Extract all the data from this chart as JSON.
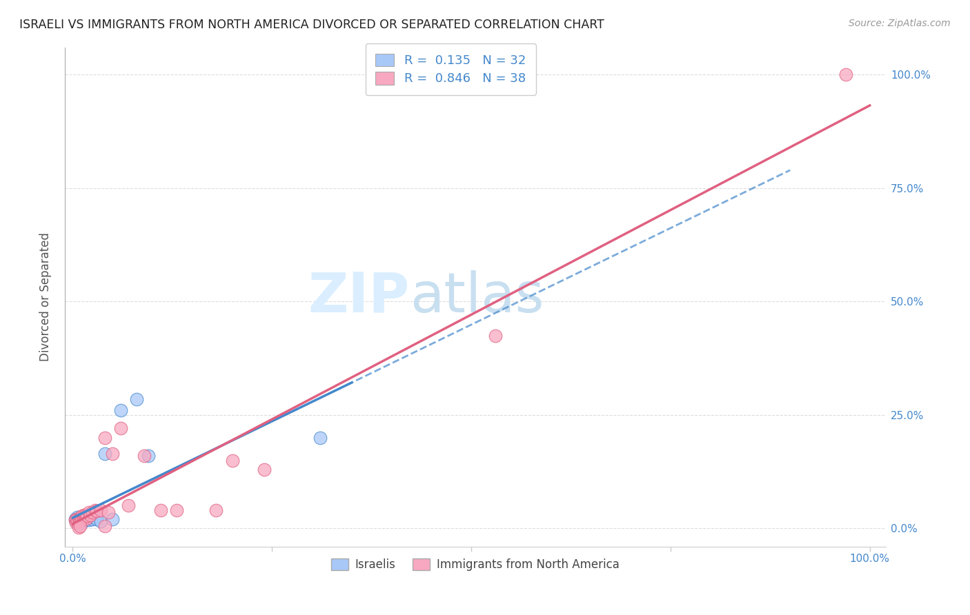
{
  "title": "ISRAELI VS IMMIGRANTS FROM NORTH AMERICA DIVORCED OR SEPARATED CORRELATION CHART",
  "source": "Source: ZipAtlas.com",
  "ylabel": "Divorced or Separated",
  "legend_label1": "Israelis",
  "legend_label2": "Immigrants from North America",
  "R1": 0.135,
  "N1": 32,
  "R2": 0.846,
  "N2": 38,
  "color_blue": "#a8c8f8",
  "color_pink": "#f8a8c0",
  "line_blue": "#4488cc",
  "line_pink": "#e06080",
  "watermark_zip": "ZIP",
  "watermark_atlas": "atlas",
  "watermark_color": "#daeeff",
  "background": "#ffffff",
  "grid_color": "#dddddd",
  "blue_scatter_x": [
    0.003,
    0.004,
    0.005,
    0.006,
    0.006,
    0.007,
    0.007,
    0.008,
    0.008,
    0.009,
    0.01,
    0.01,
    0.011,
    0.012,
    0.013,
    0.013,
    0.014,
    0.015,
    0.016,
    0.018,
    0.02,
    0.022,
    0.025,
    0.028,
    0.03,
    0.035,
    0.04,
    0.05,
    0.06,
    0.08,
    0.095,
    0.31
  ],
  "blue_scatter_y": [
    0.02,
    0.015,
    0.018,
    0.012,
    0.025,
    0.01,
    0.022,
    0.015,
    0.018,
    0.02,
    0.015,
    0.025,
    0.018,
    0.022,
    0.02,
    0.015,
    0.025,
    0.02,
    0.018,
    0.022,
    0.018,
    0.025,
    0.02,
    0.025,
    0.02,
    0.015,
    0.165,
    0.02,
    0.26,
    0.285,
    0.16,
    0.2
  ],
  "pink_scatter_x": [
    0.003,
    0.004,
    0.005,
    0.006,
    0.007,
    0.008,
    0.009,
    0.01,
    0.011,
    0.012,
    0.013,
    0.014,
    0.015,
    0.016,
    0.017,
    0.018,
    0.02,
    0.022,
    0.025,
    0.028,
    0.03,
    0.035,
    0.04,
    0.045,
    0.05,
    0.06,
    0.07,
    0.09,
    0.11,
    0.13,
    0.18,
    0.2,
    0.24,
    0.53,
    0.007,
    0.009,
    0.04,
    0.97
  ],
  "pink_scatter_y": [
    0.018,
    0.012,
    0.02,
    0.015,
    0.022,
    0.018,
    0.015,
    0.025,
    0.02,
    0.028,
    0.022,
    0.03,
    0.025,
    0.03,
    0.022,
    0.028,
    0.035,
    0.03,
    0.035,
    0.04,
    0.038,
    0.04,
    0.2,
    0.035,
    0.165,
    0.22,
    0.05,
    0.16,
    0.04,
    0.04,
    0.04,
    0.15,
    0.13,
    0.425,
    0.002,
    0.005,
    0.005,
    1.0
  ],
  "ytick_values": [
    0.0,
    0.25,
    0.5,
    0.75,
    1.0
  ],
  "ytick_labels": [
    "0.0%",
    "25.0%",
    "50.0%",
    "75.0%",
    "100.0%"
  ]
}
